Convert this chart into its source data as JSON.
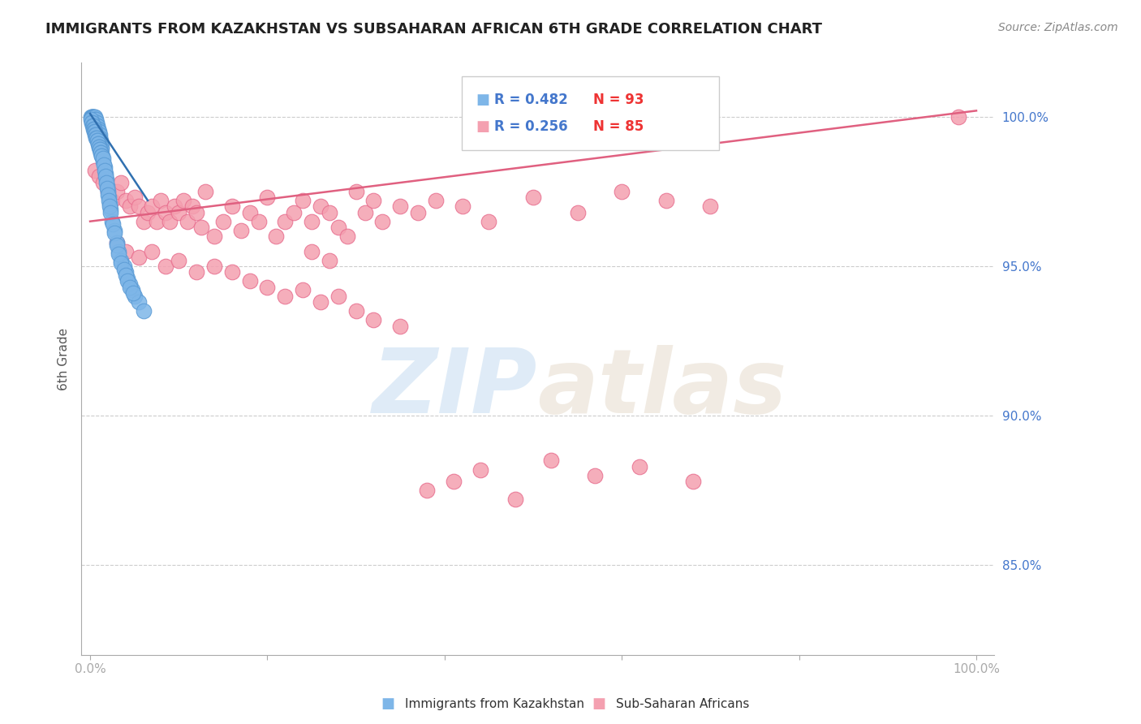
{
  "title": "IMMIGRANTS FROM KAZAKHSTAN VS SUBSAHARAN AFRICAN 6TH GRADE CORRELATION CHART",
  "source": "Source: ZipAtlas.com",
  "ylabel": "6th Grade",
  "ylim": [
    82.0,
    101.8
  ],
  "xlim": [
    -1.0,
    102.0
  ],
  "blue_color": "#7EB6E8",
  "pink_color": "#F4A0B0",
  "blue_edge": "#5B9BD5",
  "pink_edge": "#E87090",
  "trend_pink_color": "#E06080",
  "trend_blue_color": "#3070B0",
  "legend_blue_r": "R = 0.482",
  "legend_blue_n": "N = 93",
  "legend_pink_r": "R = 0.256",
  "legend_pink_n": "N = 85",
  "watermark_zip": "ZIP",
  "watermark_atlas": "atlas",
  "legend_label_blue": "Immigrants from Kazakhstan",
  "legend_label_pink": "Sub-Saharan Africans",
  "blue_scatter_x": [
    0.1,
    0.15,
    0.2,
    0.25,
    0.3,
    0.35,
    0.4,
    0.45,
    0.5,
    0.55,
    0.6,
    0.65,
    0.7,
    0.75,
    0.8,
    0.85,
    0.9,
    0.95,
    1.0,
    1.05,
    1.1,
    1.15,
    1.2,
    1.25,
    1.3,
    1.4,
    1.5,
    1.6,
    1.7,
    1.8,
    1.9,
    2.0,
    2.1,
    2.2,
    2.3,
    2.5,
    2.7,
    3.0,
    3.2,
    3.5,
    3.8,
    4.0,
    4.2,
    4.5,
    4.8,
    5.0,
    5.5,
    6.0,
    0.12,
    0.18,
    0.22,
    0.28,
    0.32,
    0.38,
    0.42,
    0.48,
    0.52,
    0.58,
    0.62,
    0.68,
    0.72,
    0.78,
    0.82,
    0.88,
    0.92,
    0.98,
    1.02,
    1.08,
    1.12,
    1.18,
    1.22,
    1.28,
    1.32,
    1.42,
    1.52,
    1.62,
    1.72,
    1.82,
    1.92,
    2.02,
    2.12,
    2.22,
    2.32,
    2.52,
    2.72,
    3.02,
    3.22,
    3.52,
    3.82,
    4.02,
    4.22,
    4.52,
    4.82
  ],
  "blue_scatter_y": [
    100.0,
    100.0,
    100.0,
    100.0,
    100.0,
    100.0,
    100.0,
    100.0,
    100.0,
    99.9,
    99.9,
    99.8,
    99.8,
    99.7,
    99.7,
    99.6,
    99.6,
    99.5,
    99.5,
    99.4,
    99.3,
    99.2,
    99.1,
    99.0,
    98.9,
    98.7,
    98.5,
    98.3,
    98.1,
    97.9,
    97.7,
    97.5,
    97.3,
    97.1,
    96.9,
    96.5,
    96.2,
    95.8,
    95.5,
    95.2,
    95.0,
    94.8,
    94.6,
    94.4,
    94.2,
    94.0,
    93.8,
    93.5,
    99.9,
    99.8,
    99.8,
    99.7,
    99.7,
    99.6,
    99.6,
    99.5,
    99.5,
    99.4,
    99.4,
    99.3,
    99.3,
    99.2,
    99.2,
    99.1,
    99.1,
    99.0,
    99.0,
    98.9,
    98.9,
    98.8,
    98.8,
    98.7,
    98.7,
    98.6,
    98.4,
    98.2,
    98.0,
    97.8,
    97.6,
    97.4,
    97.2,
    97.0,
    96.8,
    96.4,
    96.1,
    95.7,
    95.4,
    95.1,
    94.9,
    94.7,
    94.5,
    94.3,
    94.1
  ],
  "pink_scatter_x": [
    0.5,
    1.0,
    1.5,
    2.0,
    2.5,
    3.0,
    3.5,
    4.0,
    4.5,
    5.0,
    5.5,
    6.0,
    6.5,
    7.0,
    7.5,
    8.0,
    8.5,
    9.0,
    9.5,
    10.0,
    10.5,
    11.0,
    11.5,
    12.0,
    12.5,
    13.0,
    14.0,
    15.0,
    16.0,
    17.0,
    18.0,
    19.0,
    20.0,
    21.0,
    22.0,
    23.0,
    24.0,
    25.0,
    26.0,
    27.0,
    28.0,
    29.0,
    30.0,
    31.0,
    32.0,
    33.0,
    35.0,
    37.0,
    39.0,
    42.0,
    45.0,
    50.0,
    55.0,
    60.0,
    65.0,
    70.0,
    98.0,
    25.0,
    27.0,
    3.0,
    4.0,
    5.5,
    7.0,
    8.5,
    10.0,
    12.0,
    14.0,
    16.0,
    18.0,
    20.0,
    22.0,
    24.0,
    26.0,
    28.0,
    30.0,
    32.0,
    35.0,
    38.0,
    41.0,
    44.0,
    48.0,
    52.0,
    57.0,
    62.0,
    68.0
  ],
  "pink_scatter_y": [
    98.2,
    98.0,
    97.8,
    97.5,
    97.2,
    97.5,
    97.8,
    97.2,
    97.0,
    97.3,
    97.0,
    96.5,
    96.8,
    97.0,
    96.5,
    97.2,
    96.8,
    96.5,
    97.0,
    96.8,
    97.2,
    96.5,
    97.0,
    96.8,
    96.3,
    97.5,
    96.0,
    96.5,
    97.0,
    96.2,
    96.8,
    96.5,
    97.3,
    96.0,
    96.5,
    96.8,
    97.2,
    96.5,
    97.0,
    96.8,
    96.3,
    96.0,
    97.5,
    96.8,
    97.2,
    96.5,
    97.0,
    96.8,
    97.2,
    97.0,
    96.5,
    97.3,
    96.8,
    97.5,
    97.2,
    97.0,
    100.0,
    95.5,
    95.2,
    95.8,
    95.5,
    95.3,
    95.5,
    95.0,
    95.2,
    94.8,
    95.0,
    94.8,
    94.5,
    94.3,
    94.0,
    94.2,
    93.8,
    94.0,
    93.5,
    93.2,
    93.0,
    87.5,
    87.8,
    88.2,
    87.2,
    88.5,
    88.0,
    88.3,
    87.8
  ],
  "pink_trend_x": [
    0.0,
    100.0
  ],
  "pink_trend_y": [
    96.5,
    100.2
  ],
  "blue_trend_x": [
    0.0,
    6.5
  ],
  "blue_trend_y": [
    100.1,
    97.2
  ],
  "background_color": "#ffffff",
  "grid_color": "#cccccc",
  "title_color": "#222222",
  "axis_label_color": "#555555",
  "tick_color": "#4477CC"
}
